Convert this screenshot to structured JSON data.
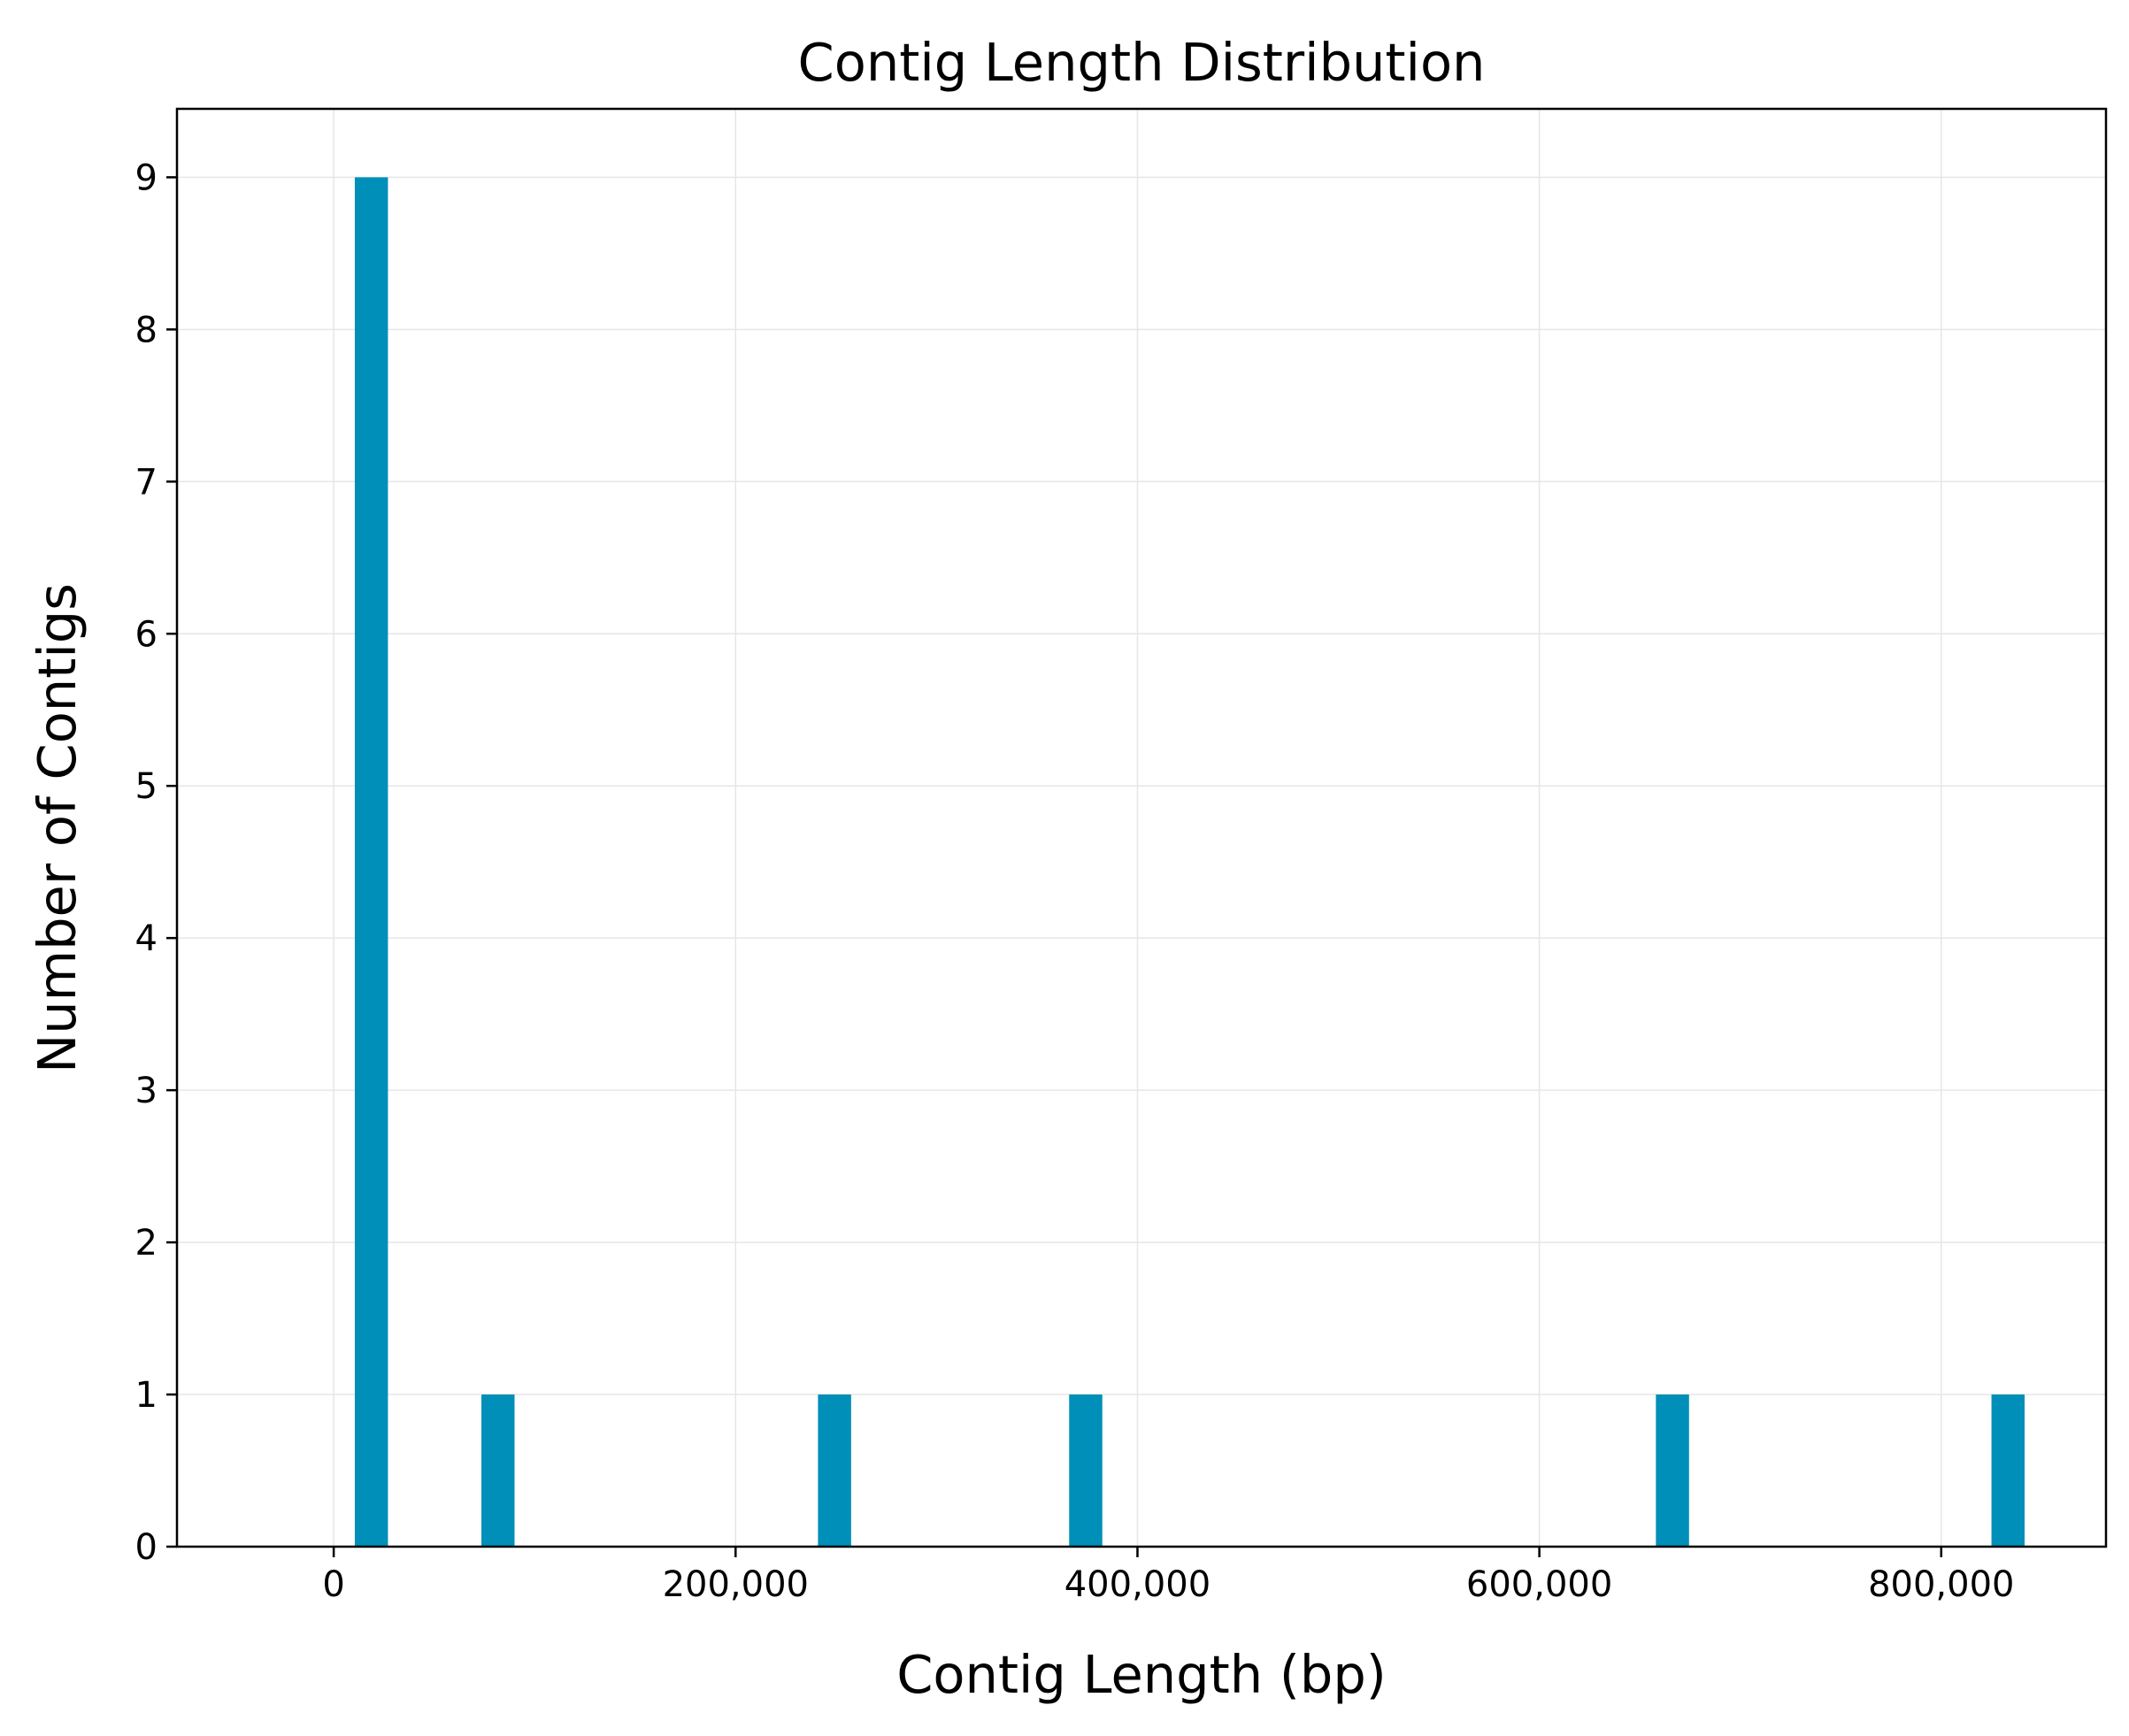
{
  "chart_data": {
    "type": "bar",
    "title": "Contig Length Distribution",
    "xlabel": "Contig Length (bp)",
    "ylabel": "Number of Contigs",
    "xlim": [
      -78000,
      882000
    ],
    "ylim": [
      0,
      9.45
    ],
    "grid": true,
    "bin_width": 16500,
    "x_ticks": [
      {
        "value": 0,
        "label": "0"
      },
      {
        "value": 200000,
        "label": "200,000"
      },
      {
        "value": 400000,
        "label": "400,000"
      },
      {
        "value": 600000,
        "label": "600,000"
      },
      {
        "value": 800000,
        "label": "800,000"
      }
    ],
    "y_ticks": [
      {
        "value": 0,
        "label": "0"
      },
      {
        "value": 1,
        "label": "1"
      },
      {
        "value": 2,
        "label": "2"
      },
      {
        "value": 3,
        "label": "3"
      },
      {
        "value": 4,
        "label": "4"
      },
      {
        "value": 5,
        "label": "5"
      },
      {
        "value": 6,
        "label": "6"
      },
      {
        "value": 7,
        "label": "7"
      },
      {
        "value": 8,
        "label": "8"
      },
      {
        "value": 9,
        "label": "9"
      }
    ],
    "bins": [
      {
        "start": 10500,
        "count": 9
      },
      {
        "start": 73500,
        "count": 1
      },
      {
        "start": 241000,
        "count": 1
      },
      {
        "start": 366000,
        "count": 1
      },
      {
        "start": 658000,
        "count": 1
      },
      {
        "start": 825000,
        "count": 1
      }
    ],
    "bar_color": "#008fb8",
    "grid_color": "#e6e6e6"
  }
}
